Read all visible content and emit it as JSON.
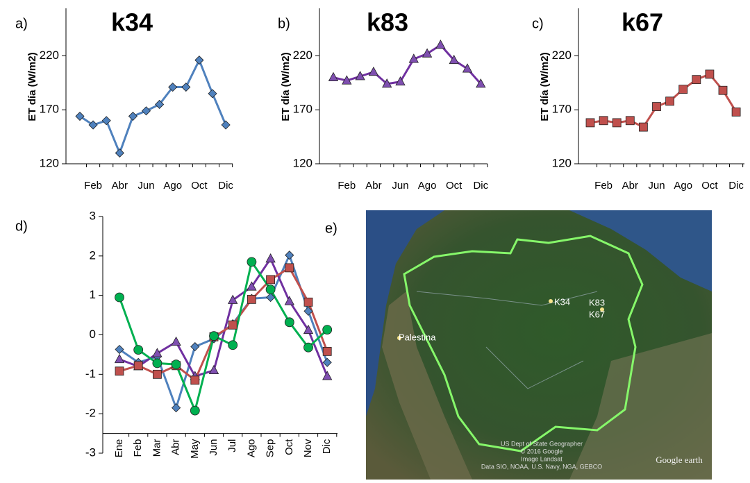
{
  "chart_data": [
    {
      "type": "line",
      "panel_label": "a)",
      "title": "k34",
      "y_label": "ET día (W/m2)",
      "categories": [
        null,
        "Feb",
        null,
        "Abr",
        null,
        "Jun",
        null,
        "Ago",
        null,
        "Oct",
        null,
        "Dic"
      ],
      "series": [
        {
          "color": "#4f81bd",
          "marker": "diamond",
          "marker_color": "#4f81bd",
          "values": [
            164,
            156,
            160,
            130,
            164,
            169,
            175,
            191,
            191,
            216,
            185,
            156
          ]
        }
      ],
      "ylim": [
        120,
        264
      ],
      "yticks": [
        120,
        170,
        220
      ]
    },
    {
      "type": "line",
      "panel_label": "b)",
      "title": "k83",
      "y_label": "ET día (W/m2)",
      "categories": [
        null,
        "Feb",
        null,
        "Abr",
        null,
        "Jun",
        null,
        "Ago",
        null,
        "Oct",
        null,
        "Dic"
      ],
      "series": [
        {
          "color": "#7030a0",
          "marker": "triangle",
          "marker_color": "#7f4fb0",
          "values": [
            200,
            197,
            201,
            205,
            194,
            196,
            217,
            222,
            230,
            216,
            208,
            194
          ]
        }
      ],
      "ylim": [
        120,
        264
      ],
      "yticks": [
        120,
        170,
        220
      ]
    },
    {
      "type": "line",
      "panel_label": "c)",
      "title": "k67",
      "y_label": "ET día (W/m2)",
      "categories": [
        null,
        "Feb",
        null,
        "Abr",
        null,
        "Jun",
        null,
        "Ago",
        null,
        "Oct",
        null,
        "Dic"
      ],
      "series": [
        {
          "color": "#c0504d",
          "marker": "square",
          "marker_color": "#c0504d",
          "values": [
            158,
            160,
            158,
            160,
            154,
            173,
            178,
            189,
            198,
            203,
            188,
            168
          ]
        }
      ],
      "ylim": [
        120,
        264
      ],
      "yticks": [
        120,
        170,
        220
      ]
    },
    {
      "type": "line",
      "panel_label": "d)",
      "categories": [
        "Ene",
        "Feb",
        "Mar",
        "Abr",
        "May",
        "Jun",
        "Jul",
        "Ago",
        "Sep",
        "Oct",
        "Nov",
        "Dic"
      ],
      "series": [
        {
          "color": "#4f81bd",
          "marker": "diamond",
          "marker_color": "#4f81bd",
          "values": [
            -0.37,
            -0.7,
            -0.55,
            -1.85,
            -0.3,
            -0.1,
            0.28,
            0.92,
            0.95,
            2.02,
            0.6,
            -0.7
          ]
        },
        {
          "color": "#7030a0",
          "marker": "triangle",
          "marker_color": "#7f4fb0",
          "values": [
            -0.62,
            -0.8,
            -0.47,
            -0.18,
            -1.05,
            -0.9,
            0.88,
            1.22,
            1.93,
            0.85,
            0.12,
            -1.05
          ]
        },
        {
          "color": "#c0504d",
          "marker": "square",
          "marker_color": "#c0504d",
          "values": [
            -0.92,
            -0.78,
            -1.0,
            -0.78,
            -1.15,
            -0.05,
            0.25,
            0.9,
            1.4,
            1.7,
            0.83,
            -0.42
          ]
        },
        {
          "color": "#00b050",
          "marker": "circle",
          "marker_color": "#00b050",
          "values": [
            0.95,
            -0.38,
            -0.72,
            -0.75,
            -1.92,
            -0.03,
            -0.26,
            1.85,
            1.15,
            0.32,
            -0.32,
            0.13
          ]
        }
      ],
      "ylim": [
        -3,
        3
      ],
      "yticks": [
        -3,
        -2,
        -1,
        0,
        1,
        2,
        3
      ],
      "x_axis_crosses": -2.5,
      "rotate_categories": true
    }
  ],
  "map": {
    "panel_label": "e)",
    "sites": [
      "K34",
      "K83",
      "K67"
    ],
    "place": "Palestina",
    "attribution": [
      "US Dept of State Geographer",
      "© 2016 Google",
      "Image Landsat",
      "Data SIO, NOAA, U.S. Navy, NGA, GEBCO"
    ],
    "logo": "Google earth"
  }
}
